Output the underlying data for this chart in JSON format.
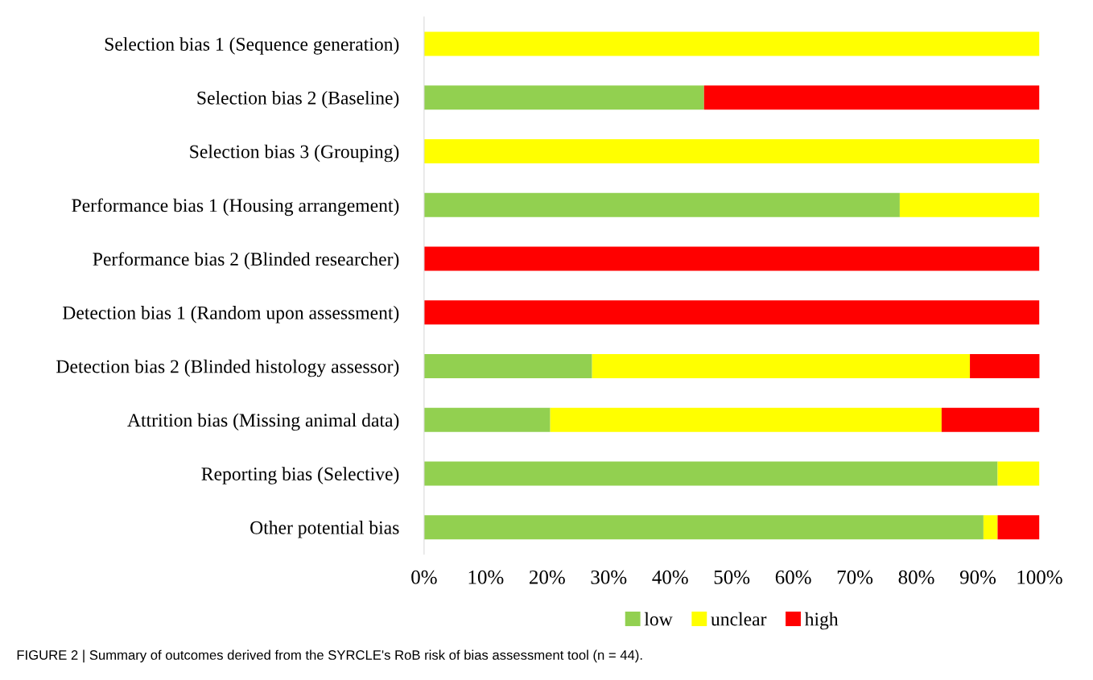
{
  "chart_data": {
    "type": "bar",
    "orientation": "horizontal",
    "stacked": true,
    "categories": [
      "Selection bias 1 (Sequence generation)",
      "Selection bias 2 (Baseline)",
      "Selection bias 3 (Grouping)",
      "Performance bias 1 (Housing arrangement)",
      "Performance bias 2 (Blinded researcher)",
      "Detection bias 1 (Random upon assessment)",
      "Detection bias 2 (Blinded histology assessor)",
      "Attrition bias (Missing animal data)",
      "Reporting bias (Selective)",
      "Other potential bias"
    ],
    "series": [
      {
        "name": "low",
        "color": "#92d050",
        "values": [
          0,
          45.5,
          0,
          77.3,
          0,
          0,
          27.3,
          20.5,
          93.2,
          90.9
        ]
      },
      {
        "name": "unclear",
        "color": "#ffff00",
        "values": [
          100,
          0,
          100,
          22.7,
          0,
          0,
          61.4,
          63.6,
          6.8,
          2.3
        ]
      },
      {
        "name": "high",
        "color": "#ff0000",
        "values": [
          0,
          54.5,
          0,
          0,
          100,
          100,
          11.4,
          15.9,
          0,
          6.8
        ]
      }
    ],
    "xlim": [
      0,
      100
    ],
    "xticks": [
      {
        "value": 0,
        "label": "0%"
      },
      {
        "value": 10,
        "label": "10%"
      },
      {
        "value": 20,
        "label": "20%"
      },
      {
        "value": 30,
        "label": "30%"
      },
      {
        "value": 40,
        "label": "40%"
      },
      {
        "value": 50,
        "label": "50%"
      },
      {
        "value": 60,
        "label": "60%"
      },
      {
        "value": 70,
        "label": "70%"
      },
      {
        "value": 80,
        "label": "80%"
      },
      {
        "value": 90,
        "label": "90%"
      },
      {
        "value": 100,
        "label": "100%"
      }
    ],
    "grid": false,
    "legend": "bottom",
    "annotations": [
      "FIGURE 2 | Summary of outcomes derived from the SYRCLE's RoB risk of bias assessment tool (n = 44)."
    ]
  }
}
